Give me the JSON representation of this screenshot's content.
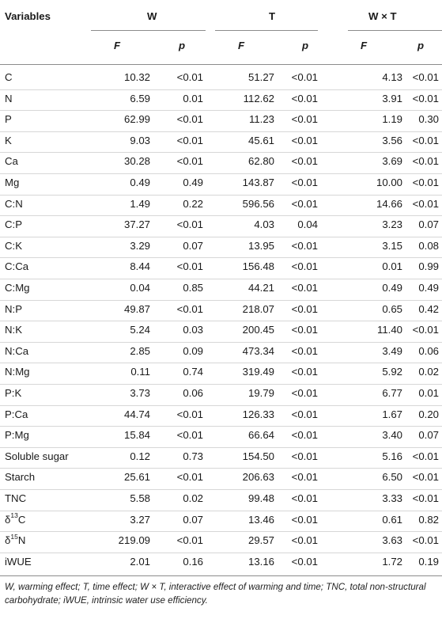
{
  "table": {
    "header": {
      "variables": "Variables",
      "groups": [
        "W",
        "T",
        "W × T"
      ],
      "sub": [
        "F",
        "p",
        "F",
        "p",
        "F",
        "p"
      ]
    },
    "rows": [
      {
        "label": "C",
        "values": [
          "10.32",
          "<0.01",
          "51.27",
          "<0.01",
          "4.13",
          "<0.01"
        ]
      },
      {
        "label": "N",
        "values": [
          "6.59",
          "0.01",
          "112.62",
          "<0.01",
          "3.91",
          "<0.01"
        ]
      },
      {
        "label": "P",
        "values": [
          "62.99",
          "<0.01",
          "11.23",
          "<0.01",
          "1.19",
          "0.30"
        ]
      },
      {
        "label": "K",
        "values": [
          "9.03",
          "<0.01",
          "45.61",
          "<0.01",
          "3.56",
          "<0.01"
        ]
      },
      {
        "label": "Ca",
        "values": [
          "30.28",
          "<0.01",
          "62.80",
          "<0.01",
          "3.69",
          "<0.01"
        ]
      },
      {
        "label": "Mg",
        "values": [
          "0.49",
          "0.49",
          "143.87",
          "<0.01",
          "10.00",
          "<0.01"
        ]
      },
      {
        "label": "C:N",
        "values": [
          "1.49",
          "0.22",
          "596.56",
          "<0.01",
          "14.66",
          "<0.01"
        ]
      },
      {
        "label": "C:P",
        "values": [
          "37.27",
          "<0.01",
          "4.03",
          "0.04",
          "3.23",
          "0.07"
        ]
      },
      {
        "label": "C:K",
        "values": [
          "3.29",
          "0.07",
          "13.95",
          "<0.01",
          "3.15",
          "0.08"
        ]
      },
      {
        "label": "C:Ca",
        "values": [
          "8.44",
          "<0.01",
          "156.48",
          "<0.01",
          "0.01",
          "0.99"
        ]
      },
      {
        "label": "C:Mg",
        "values": [
          "0.04",
          "0.85",
          "44.21",
          "<0.01",
          "0.49",
          "0.49"
        ]
      },
      {
        "label": "N:P",
        "values": [
          "49.87",
          "<0.01",
          "218.07",
          "<0.01",
          "0.65",
          "0.42"
        ]
      },
      {
        "label": "N:K",
        "values": [
          "5.24",
          "0.03",
          "200.45",
          "<0.01",
          "11.40",
          "<0.01"
        ]
      },
      {
        "label": "N:Ca",
        "values": [
          "2.85",
          "0.09",
          "473.34",
          "<0.01",
          "3.49",
          "0.06"
        ]
      },
      {
        "label": "N:Mg",
        "values": [
          "0.11",
          "0.74",
          "319.49",
          "<0.01",
          "5.92",
          "0.02"
        ]
      },
      {
        "label": "P:K",
        "values": [
          "3.73",
          "0.06",
          "19.79",
          "<0.01",
          "6.77",
          "0.01"
        ]
      },
      {
        "label": "P:Ca",
        "values": [
          "44.74",
          "<0.01",
          "126.33",
          "<0.01",
          "1.67",
          "0.20"
        ]
      },
      {
        "label": "P:Mg",
        "values": [
          "15.84",
          "<0.01",
          "66.64",
          "<0.01",
          "3.40",
          "0.07"
        ]
      },
      {
        "label": "Soluble sugar",
        "values": [
          "0.12",
          "0.73",
          "154.50",
          "<0.01",
          "5.16",
          "<0.01"
        ]
      },
      {
        "label": "Starch",
        "values": [
          "25.61",
          "<0.01",
          "206.63",
          "<0.01",
          "6.50",
          "<0.01"
        ]
      },
      {
        "label": "TNC",
        "values": [
          "5.58",
          "0.02",
          "99.48",
          "<0.01",
          "3.33",
          "<0.01"
        ]
      },
      {
        "label": "δ",
        "sup": "13",
        "suffix": "C",
        "values": [
          "3.27",
          "0.07",
          "13.46",
          "<0.01",
          "0.61",
          "0.82"
        ]
      },
      {
        "label": "δ",
        "sup": "15",
        "suffix": "N",
        "values": [
          "219.09",
          "<0.01",
          "29.57",
          "<0.01",
          "3.63",
          "<0.01"
        ]
      },
      {
        "label": "iWUE",
        "values": [
          "2.01",
          "0.16",
          "13.16",
          "<0.01",
          "1.72",
          "0.19"
        ]
      }
    ]
  },
  "footnote": "W, warming effect; T, time effect; W × T, interactive effect of warming and time; TNC, total non-structural carbohydrate; iWUE, intrinsic water use efficiency."
}
